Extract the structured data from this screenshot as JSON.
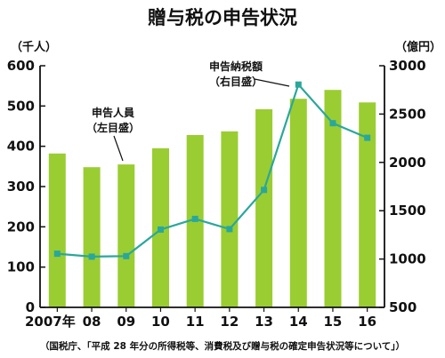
{
  "chart_data": {
    "type": "bar+line",
    "title": "贈与税の申告状況",
    "categories": [
      "2007年",
      "08",
      "09",
      "10",
      "11",
      "12",
      "13",
      "14",
      "15",
      "16"
    ],
    "series": [
      {
        "name": "申告人員",
        "name_sub": "（左目盛）",
        "type": "bar",
        "axis": "left",
        "color": "#9acd32",
        "values": [
          382,
          348,
          355,
          395,
          428,
          437,
          492,
          518,
          540,
          509
        ]
      },
      {
        "name": "申告納税額",
        "name_sub": "（右目盛）",
        "type": "line",
        "axis": "right",
        "color": "#2aa79b",
        "values": [
          1055,
          1025,
          1030,
          1305,
          1415,
          1310,
          1715,
          2805,
          2405,
          2255
        ]
      }
    ],
    "y_left": {
      "unit": "（千人）",
      "ylim": [
        0,
        600
      ],
      "ticks": [
        "0",
        "100",
        "200",
        "300",
        "400",
        "500",
        "600"
      ]
    },
    "y_right": {
      "unit": "（億円）",
      "ylim": [
        500,
        3000
      ],
      "ticks": [
        "500",
        "1000",
        "1500",
        "2000",
        "2500",
        "3000"
      ]
    },
    "grid": false,
    "source": "（国税庁、「平成 28 年分の所得税等、消費税及び贈与税の確定申告状況等について」）"
  }
}
